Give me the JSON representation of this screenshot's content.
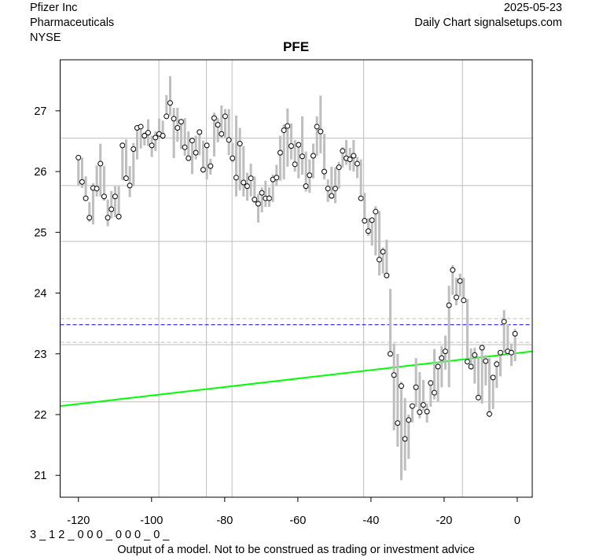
{
  "header": {
    "company": "Pfizer Inc",
    "sector": "Pharmaceuticals",
    "exchange": "NYSE",
    "date": "2025-05-23",
    "source": "Daily Chart signalsetups.com"
  },
  "footer": {
    "code": "3 _ 1 2 _ 0 0 0 _ 0 0 0 _ 0 _",
    "disclaimer": "Output of a model. Not to be construed as trading or investment advice"
  },
  "chart_data": {
    "type": "line",
    "title": "PFE",
    "xlabel": "",
    "ylabel": "",
    "xlim": [
      -125,
      4.1
    ],
    "ylim": [
      20.64,
      27.84
    ],
    "xticks": [
      -120,
      -100,
      -80,
      -60,
      -40,
      -20,
      0
    ],
    "xtick_labels": [
      "-120",
      "-100",
      "-80",
      "-60",
      "-40",
      "-20",
      "0"
    ],
    "yticks": [
      21,
      22,
      23,
      24,
      25,
      26,
      27
    ],
    "ytick_labels": [
      "21",
      "22",
      "23",
      "24",
      "25",
      "26",
      "27"
    ],
    "vertical_gridlines": [
      -98,
      -85,
      -78,
      -42,
      -15
    ],
    "horizontal_levels": [
      26.55,
      25.77,
      24.85,
      23.15,
      22.21
    ],
    "colors": {
      "bars": "#bebebe",
      "grid": "#bebebe",
      "trend": "#00ff00",
      "level": "#0000ff",
      "band": "#bebebe"
    },
    "bars": {
      "x_start": -120,
      "close": [
        26.23,
        25.83,
        25.56,
        25.24,
        25.73,
        25.72,
        26.13,
        25.59,
        25.24,
        25.38,
        25.59,
        25.26,
        26.43,
        25.89,
        25.77,
        26.37,
        26.72,
        26.74,
        26.59,
        26.64,
        26.43,
        26.56,
        26.62,
        26.59,
        26.91,
        27.13,
        26.87,
        26.72,
        26.82,
        26.4,
        26.22,
        26.51,
        26.31,
        26.65,
        26.03,
        26.43,
        26.09,
        26.88,
        26.77,
        26.62,
        26.91,
        26.52,
        26.22,
        25.9,
        26.46,
        25.82,
        25.76,
        25.89,
        25.54,
        25.47,
        25.65,
        25.56,
        25.56,
        25.87,
        25.9,
        26.31,
        26.68,
        26.75,
        26.42,
        26.12,
        26.44,
        26.25,
        25.76,
        25.94,
        26.26,
        26.74,
        26.66,
        26.0,
        25.72,
        25.6,
        25.72,
        26.07,
        26.34,
        26.22,
        26.2,
        26.26,
        26.13,
        25.56,
        25.19,
        25.02,
        25.2,
        25.34,
        24.55,
        24.68,
        24.29,
        23.0,
        22.65,
        21.86,
        22.47,
        21.6,
        21.91,
        22.14,
        22.45,
        22.04,
        22.16,
        22.05,
        22.52,
        22.36,
        22.79,
        22.93,
        23.04,
        23.8,
        24.38,
        23.93,
        24.2,
        23.88,
        22.87,
        22.79,
        22.98,
        22.28,
        23.1,
        22.88,
        22.01,
        22.61,
        22.83,
        23.02,
        23.53,
        23.04,
        23.02,
        23.33
      ],
      "high": [
        26.23,
        26.23,
        25.92,
        25.5,
        25.81,
        26.1,
        26.46,
        26.09,
        25.54,
        25.68,
        25.76,
        25.76,
        26.48,
        26.53,
        26.09,
        26.47,
        26.75,
        26.78,
        26.65,
        26.86,
        26.59,
        26.66,
        26.87,
        26.84,
        27.26,
        27.57,
        27.05,
        27.05,
        26.82,
        26.88,
        26.66,
        26.56,
        26.59,
        26.65,
        26.51,
        26.48,
        26.21,
        26.97,
        26.88,
        27.09,
        27.03,
        27.03,
        26.47,
        26.92,
        26.72,
        26.42,
        25.98,
        26.13,
        25.92,
        25.63,
        25.74,
        25.85,
        25.74,
        25.95,
        26.11,
        26.59,
        26.78,
        27.04,
        26.79,
        26.52,
        26.49,
        26.91,
        26.33,
        26.2,
        26.46,
        26.91,
        27.25,
        26.62,
        25.87,
        26.08,
        26.07,
        26.16,
        26.4,
        26.52,
        26.39,
        26.52,
        26.24,
        26.2,
        25.65,
        25.23,
        25.23,
        25.43,
        25.35,
        24.75,
        24.88,
        24.07,
        23.17,
        23.0,
        22.54,
        22.27,
        22.0,
        22.18,
        22.93,
        22.7,
        22.57,
        22.18,
        22.57,
        23.08,
        22.87,
        23.13,
        23.3,
        24.12,
        24.46,
        24.25,
        24.32,
        24.25,
        23.9,
        23.09,
        23.1,
        22.96,
        23.15,
        22.98,
        22.93,
        22.63,
        22.89,
        23.06,
        23.72,
        23.49,
        23.17,
        23.41
      ],
      "low": [
        25.77,
        25.73,
        25.54,
        25.17,
        25.13,
        25.59,
        25.59,
        25.52,
        25.1,
        25.23,
        25.25,
        25.21,
        25.86,
        25.85,
        25.58,
        25.76,
        26.2,
        26.38,
        26.43,
        26.42,
        26.24,
        26.34,
        26.56,
        26.53,
        26.92,
        26.92,
        26.22,
        26.49,
        26.37,
        26.26,
        26.2,
        25.96,
        26.2,
        26.27,
        25.98,
        25.87,
        25.95,
        26.25,
        26.48,
        26.56,
        26.56,
        26.27,
        26.15,
        25.59,
        25.69,
        25.59,
        25.52,
        25.59,
        25.48,
        25.16,
        25.33,
        25.42,
        25.42,
        25.5,
        25.76,
        25.85,
        25.87,
        26.08,
        26.2,
        26.0,
        25.89,
        25.95,
        25.67,
        25.65,
        25.89,
        26.26,
        26.3,
        25.87,
        25.5,
        25.55,
        25.48,
        25.72,
        26.07,
        26.11,
        26.02,
        26.0,
        25.89,
        25.55,
        25.16,
        24.94,
        24.78,
        24.62,
        24.29,
        24.32,
        24.27,
        22.96,
        21.74,
        21.47,
        20.92,
        21.08,
        21.27,
        21.87,
        22.13,
        21.94,
        22.07,
        21.87,
        22.13,
        22.25,
        22.22,
        22.45,
        22.74,
        22.45,
        23.97,
        23.8,
        23.94,
        23.85,
        22.84,
        22.74,
        22.51,
        22.26,
        22.18,
        22.48,
        21.96,
        22.09,
        22.44,
        22.63,
        23.02,
        22.97,
        22.8,
        22.88
      ]
    },
    "trend_line": {
      "x": [
        -125,
        4.1
      ],
      "y": [
        22.14,
        23.04
      ]
    },
    "level_line": 23.48,
    "band_lines": [
      23.58,
      23.19
    ]
  }
}
